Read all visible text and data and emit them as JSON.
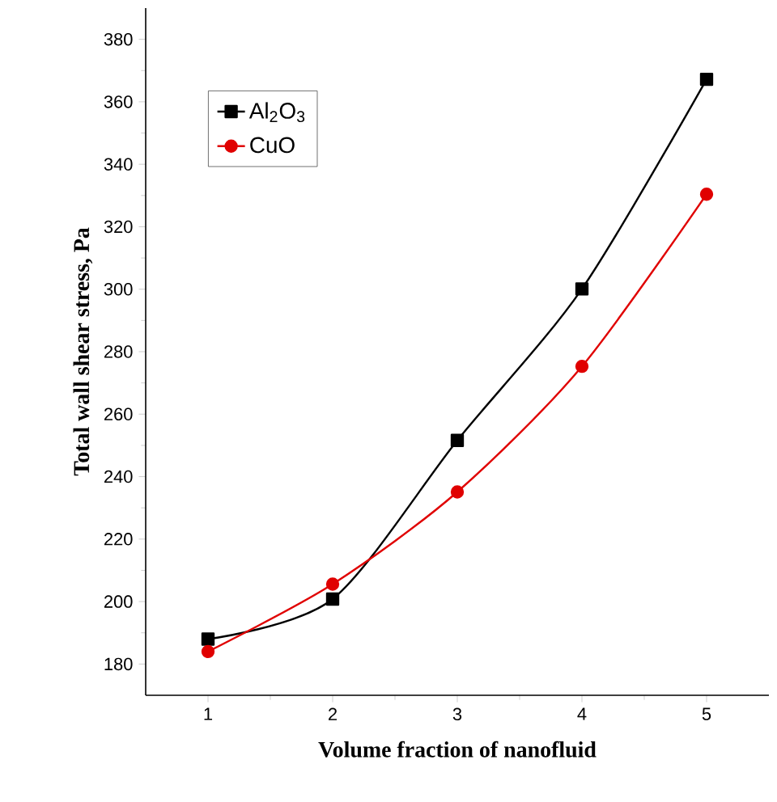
{
  "chart_data": {
    "type": "line",
    "xlabel": "Volume fraction of nanofluid",
    "ylabel": "Total wall shear stress, Pa",
    "x": [
      1,
      2,
      3,
      4,
      5
    ],
    "series": [
      {
        "name": "Al$_{2}$O$_{3}$",
        "color": "#000000",
        "marker": "square",
        "values": [
          188,
          200.8,
          251.6,
          300.1,
          367.2
        ]
      },
      {
        "name": "CuO",
        "color": "#e00000",
        "marker": "circle",
        "values": [
          184,
          205.6,
          235.1,
          275.3,
          330.4
        ]
      }
    ],
    "xlim": [
      0.5,
      5.5
    ],
    "xticks": [
      1,
      2,
      3,
      4,
      5
    ],
    "ylim": [
      170,
      390
    ],
    "yticks": [
      180,
      200,
      220,
      240,
      260,
      280,
      300,
      320,
      340,
      360,
      380
    ],
    "legend": "top left",
    "grid": false,
    "line_style": "solid"
  }
}
